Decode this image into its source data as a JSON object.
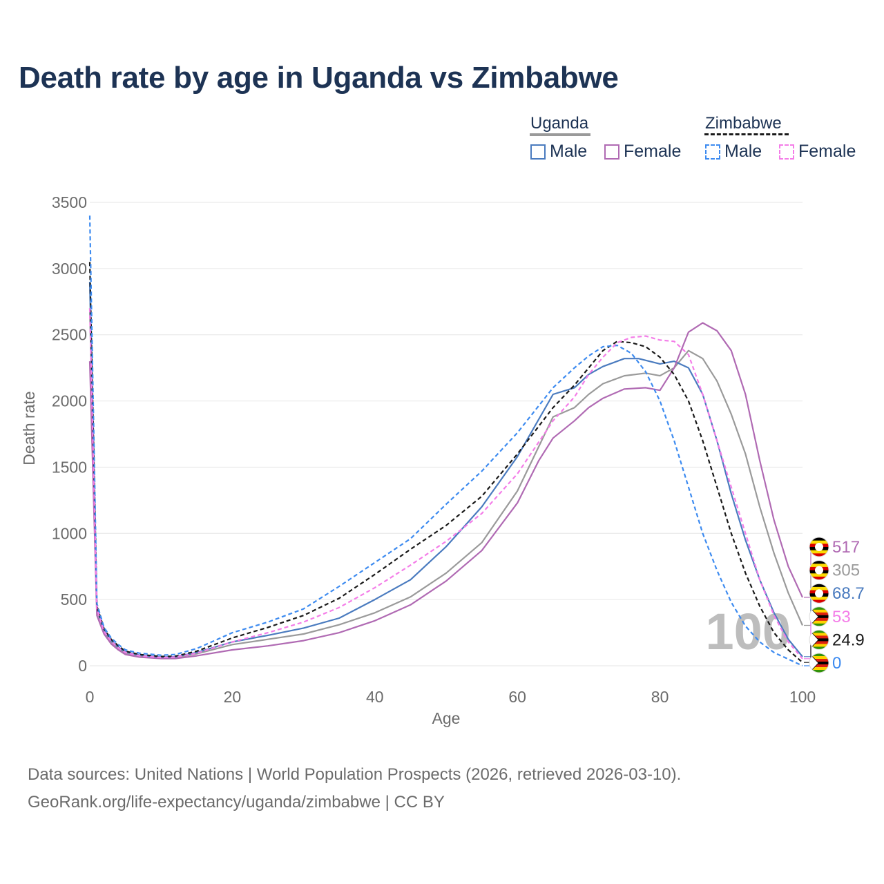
{
  "header": {
    "title": "Death rate by age in Uganda vs Zimbabwe"
  },
  "legend": {
    "uganda": {
      "label": "Uganda",
      "male": "Male",
      "female": "Female"
    },
    "zimbabwe": {
      "label": "Zimbabwe",
      "male": "Male",
      "female": "Female"
    }
  },
  "footer": {
    "source_line1": "Data sources: United Nations | World Population Prospects (2026, retrieved 2026-03-10).",
    "source_line2": "GeoRank.org/life-expectancy/uganda/zimbabwe | CC BY"
  },
  "overlay": {
    "year_label": "100"
  },
  "colors": {
    "uganda_male": "#4a7bbf",
    "uganda_female": "#b06ab3",
    "uganda_total": "#9a9a9a",
    "zimbabwe_male": "#3d8bf0",
    "zimbabwe_female": "#f47de8",
    "zimbabwe_total": "#1a1a1a",
    "title": "#1d3354",
    "axis_text": "#6b6b6b",
    "grid": "#e6e6e6"
  },
  "chart_data": {
    "type": "line",
    "title": "Death rate by age in Uganda vs Zimbabwe",
    "xlabel": "Age",
    "ylabel": "Death rate",
    "xlim": [
      0,
      100
    ],
    "ylim": [
      0,
      3500
    ],
    "xticks": [
      0,
      20,
      40,
      60,
      80,
      100
    ],
    "yticks": [
      0,
      500,
      1000,
      1500,
      2000,
      2500,
      3000,
      3500
    ],
    "grid": true,
    "legend_position": "top-right",
    "series": [
      {
        "name": "Uganda Total",
        "country": "Uganda",
        "color_key": "uganda_total",
        "dashed": false,
        "end_label": "305",
        "x": [
          0,
          1,
          2,
          3,
          4,
          5,
          7,
          10,
          12,
          15,
          20,
          25,
          30,
          35,
          40,
          45,
          50,
          55,
          60,
          65,
          68,
          70,
          72,
          75,
          78,
          80,
          82,
          84,
          86,
          88,
          90,
          92,
          94,
          96,
          98,
          100
        ],
        "y": [
          2700,
          420,
          260,
          180,
          130,
          95,
          75,
          60,
          62,
          90,
          160,
          200,
          240,
          310,
          400,
          520,
          700,
          930,
          1320,
          1880,
          1950,
          2050,
          2130,
          2190,
          2210,
          2190,
          2250,
          2380,
          2320,
          2150,
          1900,
          1600,
          1200,
          850,
          550,
          305
        ]
      },
      {
        "name": "Uganda Male",
        "country": "Uganda",
        "color_key": "uganda_male",
        "dashed": false,
        "end_label": "68.7",
        "x": [
          0,
          1,
          2,
          3,
          4,
          5,
          7,
          10,
          12,
          15,
          20,
          25,
          30,
          35,
          40,
          45,
          50,
          55,
          60,
          65,
          68,
          70,
          72,
          75,
          77,
          80,
          82,
          84,
          86,
          88,
          90,
          92,
          94,
          96,
          98,
          100
        ],
        "y": [
          2900,
          430,
          270,
          190,
          140,
          105,
          80,
          65,
          68,
          100,
          180,
          230,
          285,
          360,
          500,
          650,
          900,
          1200,
          1580,
          2050,
          2100,
          2200,
          2260,
          2320,
          2320,
          2280,
          2300,
          2250,
          2050,
          1700,
          1300,
          950,
          650,
          400,
          200,
          68.7
        ]
      },
      {
        "name": "Uganda Female",
        "country": "Uganda",
        "color_key": "uganda_female",
        "dashed": false,
        "end_label": "517",
        "x": [
          0,
          1,
          2,
          3,
          4,
          5,
          7,
          10,
          12,
          15,
          20,
          25,
          30,
          35,
          40,
          45,
          50,
          55,
          60,
          63,
          65,
          68,
          70,
          72,
          75,
          78,
          80,
          82,
          84,
          86,
          88,
          90,
          92,
          94,
          96,
          98,
          100
        ],
        "y": [
          2300,
          380,
          240,
          165,
          120,
          85,
          65,
          55,
          55,
          75,
          120,
          150,
          190,
          250,
          340,
          460,
          640,
          870,
          1230,
          1550,
          1720,
          1850,
          1950,
          2020,
          2090,
          2100,
          2080,
          2250,
          2520,
          2590,
          2530,
          2380,
          2050,
          1550,
          1100,
          750,
          517
        ]
      },
      {
        "name": "Zimbabwe Total",
        "country": "Zimbabwe",
        "color_key": "zimbabwe_total",
        "dashed": true,
        "end_label": "24.9",
        "x": [
          0,
          1,
          2,
          3,
          4,
          5,
          7,
          10,
          12,
          15,
          20,
          25,
          30,
          35,
          40,
          45,
          50,
          55,
          60,
          65,
          68,
          70,
          72,
          74,
          76,
          78,
          80,
          82,
          84,
          86,
          88,
          90,
          92,
          94,
          96,
          98,
          100
        ],
        "y": [
          3050,
          450,
          280,
          200,
          150,
          110,
          85,
          70,
          72,
          110,
          210,
          290,
          380,
          510,
          690,
          880,
          1060,
          1280,
          1600,
          1950,
          2120,
          2250,
          2380,
          2450,
          2440,
          2410,
          2330,
          2200,
          2000,
          1700,
          1350,
          1000,
          700,
          450,
          250,
          120,
          24.9
        ]
      },
      {
        "name": "Zimbabwe Male",
        "country": "Zimbabwe",
        "color_key": "zimbabwe_male",
        "dashed": true,
        "end_label": "0",
        "x": [
          0,
          1,
          2,
          3,
          4,
          5,
          7,
          10,
          12,
          15,
          20,
          25,
          30,
          35,
          40,
          45,
          50,
          55,
          60,
          65,
          68,
          70,
          72,
          74,
          76,
          78,
          80,
          82,
          84,
          86,
          88,
          90,
          92,
          94,
          96,
          98,
          100
        ],
        "y": [
          3400,
          470,
          290,
          210,
          160,
          120,
          95,
          80,
          85,
          130,
          250,
          330,
          430,
          600,
          780,
          960,
          1220,
          1470,
          1760,
          2100,
          2250,
          2340,
          2410,
          2420,
          2360,
          2220,
          2000,
          1700,
          1350,
          1000,
          720,
          480,
          300,
          180,
          100,
          50,
          0
        ]
      },
      {
        "name": "Zimbabwe Female",
        "country": "Zimbabwe",
        "color_key": "zimbabwe_female",
        "dashed": true,
        "end_label": "53",
        "x": [
          0,
          1,
          2,
          3,
          4,
          5,
          7,
          10,
          12,
          15,
          20,
          25,
          30,
          35,
          40,
          45,
          50,
          55,
          60,
          65,
          68,
          70,
          72,
          74,
          76,
          78,
          80,
          82,
          84,
          86,
          88,
          90,
          92,
          94,
          96,
          98,
          100
        ],
        "y": [
          2700,
          430,
          260,
          185,
          135,
          100,
          75,
          62,
          65,
          95,
          180,
          250,
          330,
          440,
          590,
          760,
          940,
          1150,
          1450,
          1850,
          2030,
          2200,
          2330,
          2440,
          2480,
          2490,
          2460,
          2450,
          2350,
          2050,
          1700,
          1350,
          1000,
          650,
          380,
          180,
          53
        ]
      }
    ]
  }
}
